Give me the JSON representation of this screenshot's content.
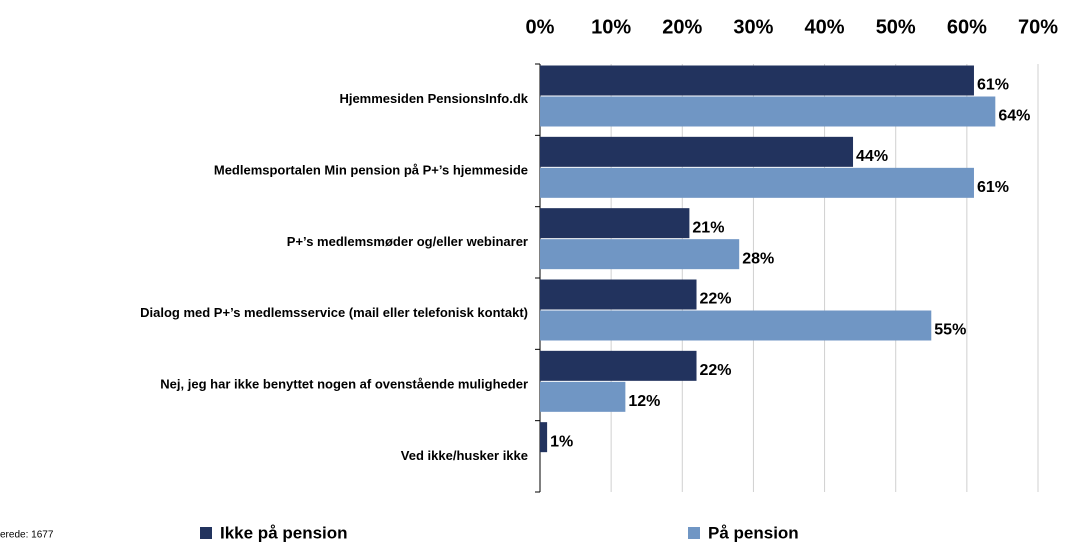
{
  "chart_data": {
    "type": "bar",
    "orientation": "horizontal",
    "categories": [
      "Hjemmesiden PensionsInfo.dk",
      "Medlemsportalen Min pension på P+’s hjemmeside",
      "P+’s medlemsmøder og/eller webinarer",
      "Dialog med P+’s medlemsservice (mail eller telefonisk kontakt)",
      "Nej, jeg har ikke benyttet nogen af ovenstående muligheder",
      "Ved ikke/husker ikke"
    ],
    "series": [
      {
        "name": "Ikke på pension",
        "color": "#22335e",
        "values": [
          61,
          44,
          21,
          22,
          22,
          1
        ],
        "value_labels": [
          "61%",
          "44%",
          "21%",
          "22%",
          "22%",
          "1%"
        ]
      },
      {
        "name": "På pension",
        "color": "#7096c4",
        "values": [
          64,
          61,
          28,
          55,
          12,
          null
        ],
        "value_labels": [
          "64%",
          "61%",
          "28%",
          "55%",
          "12%",
          null
        ]
      }
    ],
    "xlim": [
      0,
      70
    ],
    "xticks": [
      {
        "value": 0,
        "label": "0%"
      },
      {
        "value": 10,
        "label": "10%"
      },
      {
        "value": 20,
        "label": "20%"
      },
      {
        "value": 30,
        "label": "30%"
      },
      {
        "value": 40,
        "label": "40%"
      },
      {
        "value": 50,
        "label": "50%"
      },
      {
        "value": 60,
        "label": "60%"
      },
      {
        "value": 70,
        "label": "70%"
      }
    ],
    "grid": true,
    "note": "erede: 1677"
  }
}
